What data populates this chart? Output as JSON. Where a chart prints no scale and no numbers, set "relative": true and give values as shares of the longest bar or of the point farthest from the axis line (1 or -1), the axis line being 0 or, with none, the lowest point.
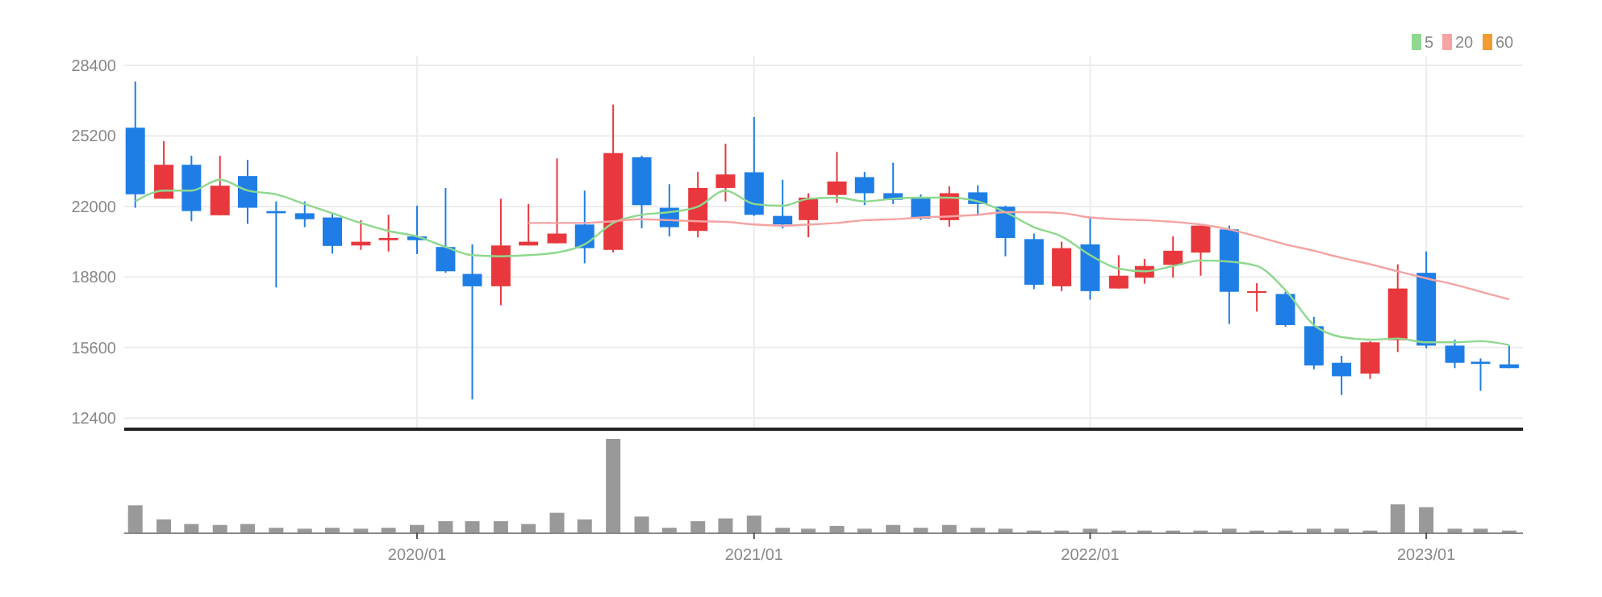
{
  "chart_data": [
    {
      "type": "candlestick",
      "x": [
        "2019-03",
        "2019-04",
        "2019-05",
        "2019-06",
        "2019-07",
        "2019-08",
        "2019-09",
        "2019-10",
        "2019-11",
        "2019-12",
        "2020-01",
        "2020-02",
        "2020-03",
        "2020-04",
        "2020-05",
        "2020-06",
        "2020-07",
        "2020-08",
        "2020-09",
        "2020-10",
        "2020-11",
        "2020-12",
        "2021-01",
        "2021-02",
        "2021-03",
        "2021-04",
        "2021-05",
        "2021-06",
        "2021-07",
        "2021-08",
        "2021-09",
        "2021-10",
        "2021-11",
        "2021-12",
        "2022-01",
        "2022-02",
        "2022-03",
        "2022-04",
        "2022-05",
        "2022-06",
        "2022-07",
        "2022-08",
        "2022-09",
        "2022-10",
        "2022-11",
        "2022-12",
        "2023-01",
        "2023-02",
        "2023-03",
        "2023-04"
      ],
      "ohlc": [
        [
          25570,
          27670,
          21940,
          22550
        ],
        [
          22350,
          24960,
          22350,
          23890
        ],
        [
          23890,
          24300,
          21330,
          21790
        ],
        [
          21600,
          24300,
          21600,
          22940
        ],
        [
          23380,
          24110,
          21210,
          21940
        ],
        [
          21790,
          22230,
          18330,
          21690
        ],
        [
          21690,
          22230,
          21060,
          21420
        ],
        [
          21500,
          21670,
          19860,
          20210
        ],
        [
          20230,
          21380,
          20030,
          20400
        ],
        [
          20470,
          21620,
          19960,
          20570
        ],
        [
          20640,
          22030,
          19840,
          20470
        ],
        [
          20160,
          22840,
          18990,
          19060
        ],
        [
          18940,
          20280,
          13250,
          18380
        ],
        [
          18380,
          22350,
          17520,
          20230
        ],
        [
          20230,
          22110,
          20230,
          20400
        ],
        [
          20330,
          24180,
          20330,
          20770
        ],
        [
          21180,
          22720,
          19420,
          20110
        ],
        [
          20030,
          26620,
          19910,
          24420
        ],
        [
          24230,
          24300,
          21010,
          22060
        ],
        [
          21940,
          23010,
          20640,
          21060
        ],
        [
          20890,
          23570,
          20600,
          22840
        ],
        [
          22840,
          24840,
          22230,
          23450
        ],
        [
          23550,
          26060,
          21570,
          21620
        ],
        [
          21570,
          23210,
          21010,
          21180
        ],
        [
          21380,
          22600,
          20600,
          22400
        ],
        [
          22520,
          24470,
          22160,
          23130
        ],
        [
          23330,
          23570,
          22060,
          22600
        ],
        [
          22600,
          23990,
          22110,
          22300
        ],
        [
          22400,
          22550,
          21380,
          21450
        ],
        [
          21380,
          22910,
          21080,
          22600
        ],
        [
          22640,
          22960,
          21570,
          22110
        ],
        [
          21990,
          22030,
          19740,
          20570
        ],
        [
          20520,
          20770,
          18250,
          18450
        ],
        [
          18380,
          20400,
          18160,
          20110
        ],
        [
          20280,
          21500,
          17770,
          18160
        ],
        [
          18280,
          19790,
          18280,
          18860
        ],
        [
          18770,
          19620,
          18500,
          19300
        ],
        [
          19350,
          20640,
          18770,
          19990
        ],
        [
          19910,
          21130,
          18860,
          21130
        ],
        [
          20960,
          21130,
          16670,
          18130
        ],
        [
          18080,
          18520,
          17230,
          18160
        ],
        [
          18030,
          18130,
          16550,
          16620
        ],
        [
          16570,
          16990,
          14620,
          14790
        ],
        [
          14910,
          15230,
          13450,
          14300
        ],
        [
          14420,
          15890,
          14180,
          15840
        ],
        [
          15940,
          19380,
          15400,
          18280
        ],
        [
          18990,
          19960,
          15570,
          15690
        ],
        [
          15690,
          15960,
          14670,
          14910
        ],
        [
          14960,
          15110,
          13640,
          14860
        ],
        [
          14840,
          15690,
          14670,
          14670
        ]
      ],
      "colors": [
        "#1e7ee6",
        "#e8383d",
        "#1e7ee6",
        "#e8383d",
        "#1e7ee6",
        "#1e7ee6",
        "#1e7ee6",
        "#1e7ee6",
        "#e8383d",
        "#e8383d",
        "#1e7ee6",
        "#1e7ee6",
        "#1e7ee6",
        "#e8383d",
        "#e8383d",
        "#e8383d",
        "#1e7ee6",
        "#e8383d",
        "#1e7ee6",
        "#1e7ee6",
        "#e8383d",
        "#e8383d",
        "#1e7ee6",
        "#1e7ee6",
        "#e8383d",
        "#e8383d",
        "#1e7ee6",
        "#1e7ee6",
        "#1e7ee6",
        "#e8383d",
        "#1e7ee6",
        "#1e7ee6",
        "#1e7ee6",
        "#e8383d",
        "#1e7ee6",
        "#e8383d",
        "#e8383d",
        "#e8383d",
        "#e8383d",
        "#1e7ee6",
        "#e8383d",
        "#1e7ee6",
        "#1e7ee6",
        "#1e7ee6",
        "#e8383d",
        "#e8383d",
        "#1e7ee6",
        "#1e7ee6",
        "#1e7ee6",
        "#1e7ee6"
      ],
      "series": [
        {
          "name": "5",
          "type": "line",
          "color": "#8fd88f",
          "values": [
            22230,
            22720,
            22720,
            23210,
            22720,
            22550,
            22110,
            21690,
            21250,
            20890,
            20640,
            20160,
            19790,
            19740,
            19790,
            19910,
            20280,
            21250,
            21620,
            21740,
            21990,
            22720,
            22110,
            22030,
            22350,
            22400,
            22230,
            22350,
            22400,
            22400,
            22230,
            21740,
            21060,
            20640,
            19790,
            19180,
            19060,
            19300,
            19550,
            19500,
            19300,
            18210,
            16620,
            16080,
            15960,
            16010,
            15840,
            15840,
            15890,
            15720
          ]
        },
        {
          "name": "20",
          "type": "line",
          "color": "#f5a3a3",
          "values": [
            null,
            null,
            null,
            null,
            null,
            null,
            null,
            null,
            null,
            null,
            null,
            null,
            null,
            null,
            21250,
            21250,
            21250,
            21330,
            21420,
            21380,
            21330,
            21300,
            21180,
            21130,
            21180,
            21250,
            21380,
            21420,
            21500,
            21550,
            21620,
            21740,
            21740,
            21700,
            21500,
            21420,
            21380,
            21300,
            21180,
            20960,
            20640,
            20280,
            19990,
            19670,
            19380,
            19060,
            18740,
            18450,
            18130,
            17790
          ]
        },
        {
          "name": "60",
          "type": "line",
          "color": "#f39c32",
          "values": [
            null,
            null,
            null,
            null,
            null,
            null,
            null,
            null,
            null,
            null,
            null,
            null,
            null,
            null,
            null,
            null,
            null,
            null,
            null,
            null,
            null,
            null,
            null,
            null,
            null,
            null,
            null,
            null,
            null,
            null,
            null,
            null,
            null,
            null,
            null,
            null,
            null,
            null,
            null,
            null,
            null,
            null,
            null,
            null,
            null,
            null,
            null,
            null,
            null,
            null
          ]
        }
      ],
      "xlim": [
        "2019-02-17",
        "2023-04-16"
      ],
      "xticks": [
        {
          "value": "2020-01",
          "label": null
        },
        {
          "value": "2021-01",
          "label": null
        },
        {
          "value": "2022-01",
          "label": null
        },
        {
          "value": "2023-01",
          "label": null
        }
      ],
      "ylim": [
        11900,
        28800
      ],
      "yticks": [
        12400,
        15600,
        18800,
        22000,
        25200,
        28400
      ],
      "tick_labels": "y",
      "grid": true,
      "legend": "top right"
    },
    {
      "type": "bar",
      "relative": true,
      "color": "#999999",
      "x": [
        "2019-03",
        "2019-04",
        "2019-05",
        "2019-06",
        "2019-07",
        "2019-08",
        "2019-09",
        "2019-10",
        "2019-11",
        "2019-12",
        "2020-01",
        "2020-02",
        "2020-03",
        "2020-04",
        "2020-05",
        "2020-06",
        "2020-07",
        "2020-08",
        "2020-09",
        "2020-10",
        "2020-11",
        "2020-12",
        "2021-01",
        "2021-02",
        "2021-03",
        "2021-04",
        "2021-05",
        "2021-06",
        "2021-07",
        "2021-08",
        "2021-09",
        "2021-10",
        "2021-11",
        "2021-12",
        "2022-01",
        "2022-02",
        "2022-03",
        "2022-04",
        "2022-05",
        "2022-06",
        "2022-07",
        "2022-08",
        "2022-09",
        "2022-10",
        "2022-11",
        "2022-12",
        "2023-01",
        "2023-02",
        "2023-03",
        "2023-04"
      ],
      "values": [
        0.29,
        0.14,
        0.09,
        0.08,
        0.09,
        0.05,
        0.04,
        0.05,
        0.04,
        0.05,
        0.08,
        0.12,
        0.12,
        0.12,
        0.09,
        0.21,
        0.14,
        1,
        0.17,
        0.05,
        0.12,
        0.15,
        0.18,
        0.05,
        0.04,
        0.07,
        0.04,
        0.08,
        0.05,
        0.08,
        0.05,
        0.04,
        0.02,
        0.02,
        0.04,
        0.02,
        0.02,
        0.02,
        0.02,
        0.04,
        0.02,
        0.02,
        0.04,
        0.04,
        0.02,
        0.3,
        0.27,
        0.04,
        0.04,
        0.02
      ],
      "xlim": [
        "2019-02-17",
        "2023-04-16"
      ],
      "xticks": [
        {
          "value": "2020-01",
          "label": "2020/01"
        },
        {
          "value": "2021-01",
          "label": "2021/01"
        },
        {
          "value": "2022-01",
          "label": "2022/01"
        },
        {
          "value": "2023-01",
          "label": "2023/01"
        }
      ],
      "tick_labels": "x"
    }
  ]
}
